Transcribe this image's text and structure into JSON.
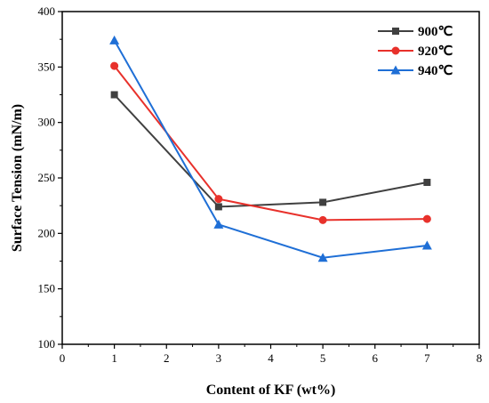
{
  "chart_data": {
    "type": "line",
    "title": "",
    "xlabel": "Content of KF (wt%)",
    "ylabel": "Surface Tension (mN/m)",
    "xlim": [
      0,
      8
    ],
    "ylim": [
      100,
      400
    ],
    "x_ticks": [
      0,
      1,
      2,
      3,
      4,
      5,
      6,
      7,
      8
    ],
    "y_ticks": [
      100,
      150,
      200,
      250,
      300,
      350,
      400
    ],
    "grid": false,
    "legend_position": "top-right",
    "x": [
      1,
      3,
      5,
      7
    ],
    "series": [
      {
        "name": "900℃",
        "values": [
          325,
          224,
          228,
          246
        ],
        "color": "#404040",
        "marker": "square"
      },
      {
        "name": "920℃",
        "values": [
          351,
          231,
          212,
          213
        ],
        "color": "#e8312b",
        "marker": "circle"
      },
      {
        "name": "940℃",
        "values": [
          374,
          208,
          178,
          189
        ],
        "color": "#1f6fd6",
        "marker": "triangle"
      }
    ]
  }
}
